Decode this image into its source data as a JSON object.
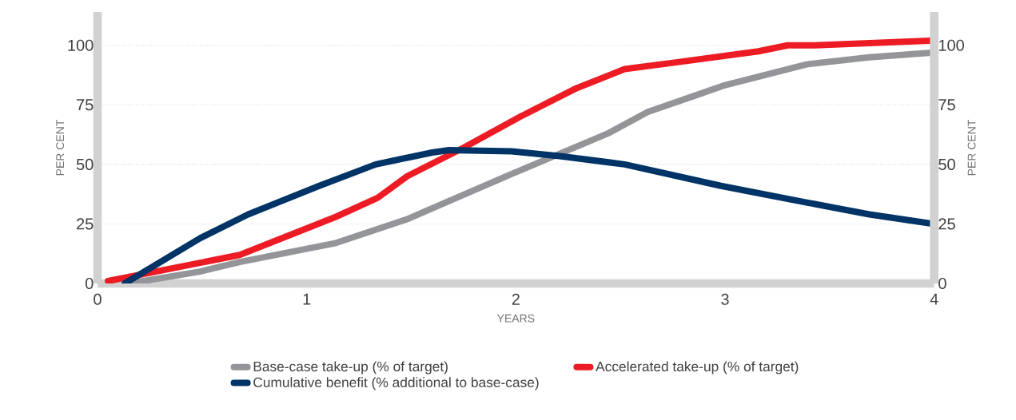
{
  "chart_data": {
    "type": "line",
    "xlabel": "YEARS",
    "ylabel": "PER CENT",
    "y2label": "PER CENT",
    "xlim": [
      0,
      4
    ],
    "xticks": [
      0,
      1,
      2,
      3,
      4
    ],
    "ylim": [
      0,
      114
    ],
    "yticks": [
      0,
      25,
      50,
      75,
      100
    ],
    "y2lim": [
      0,
      114
    ],
    "y2ticks": [
      0,
      25,
      50,
      75,
      100
    ],
    "grid": "y",
    "legend": "bottom",
    "marker": "none",
    "line_style": "solid",
    "series": [
      {
        "name": "Base-case take-up (% of target)",
        "color": "#939598",
        "x": [
          0.15,
          0.49,
          0.68,
          1.14,
          1.48,
          1.98,
          2.44,
          2.63,
          2.86,
          2.99,
          3.39,
          3.69,
          4.0
        ],
        "values": [
          0,
          5,
          9,
          17,
          27,
          46,
          63,
          72,
          79,
          83,
          92,
          95,
          97
        ]
      },
      {
        "name": "Accelerated take-up (% of target)",
        "color": "#ed1c24",
        "x": [
          0.05,
          0.68,
          1.14,
          1.34,
          1.48,
          1.75,
          2.02,
          2.29,
          2.52,
          2.78,
          3.16,
          3.3,
          3.43,
          4.0
        ],
        "values": [
          1,
          12,
          28,
          36,
          45,
          57,
          70,
          82,
          90,
          93,
          97.5,
          100,
          100,
          102
        ]
      },
      {
        "name": "Cumulative benefit (% additional to base-case)",
        "color": "#003366",
        "x": [
          0.13,
          0.49,
          0.72,
          1.06,
          1.33,
          1.6,
          1.68,
          1.98,
          2.21,
          2.52,
          2.98,
          3.39,
          3.69,
          4.0
        ],
        "values": [
          0,
          19,
          29,
          41,
          50,
          55,
          56,
          55.5,
          53.5,
          50,
          41,
          34,
          29,
          25
        ]
      }
    ]
  }
}
